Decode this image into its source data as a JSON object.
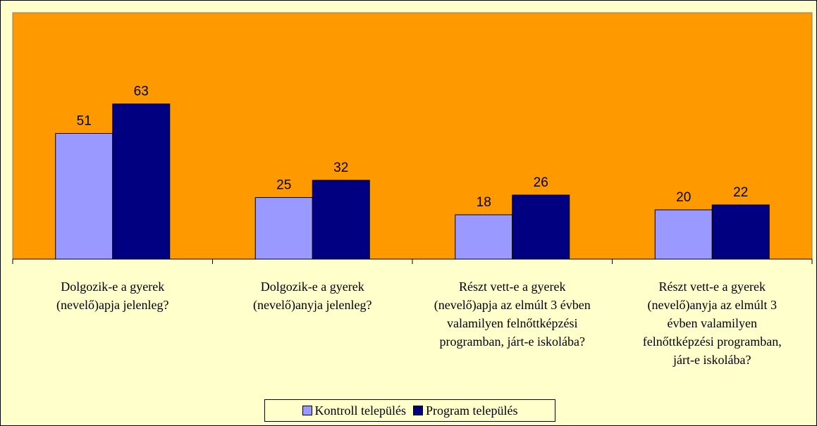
{
  "chart_data": {
    "type": "bar",
    "categories": [
      "Dolgozik-e a gyerek (nevelő)apja jelenleg?",
      "Dolgozik-e a gyerek (nevelő)anyja jelenleg?",
      "Részt vett-e a gyerek (nevelő)apja az elmúlt 3 évben valamilyen felnőttképzési programban, járt-e iskolába?",
      "Részt vett-e a gyerek (nevelő)anyja az elmúlt 3 évben valamilyen felnőttképzési programban, járt-e iskolába?"
    ],
    "series": [
      {
        "name": "Kontroll település",
        "color": "#9999ff",
        "values": [
          51,
          25,
          18,
          20
        ]
      },
      {
        "name": "Program település",
        "color": "#000080",
        "values": [
          63,
          32,
          26,
          22
        ]
      }
    ],
    "ylim": [
      0,
      100
    ],
    "plot_color": "#ff9900",
    "background": "#ffffcc",
    "legend": "bottom"
  }
}
